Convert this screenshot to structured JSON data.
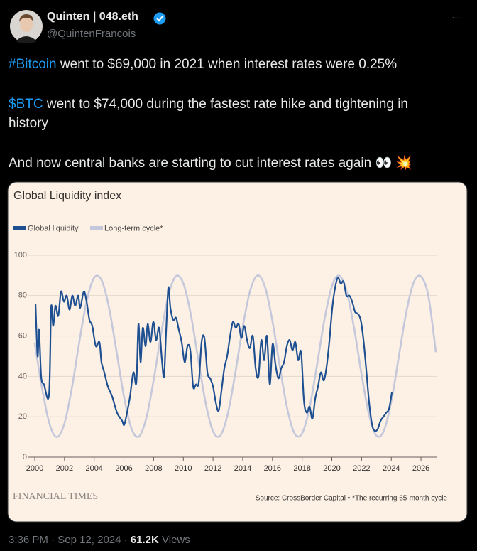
{
  "tweet": {
    "author_name": "Quinten | 048.eth",
    "handle": "@QuintenFrancois",
    "more": "···",
    "paragraphs": [
      {
        "tag": "#Bitcoin",
        "text": " went to $69,000 in 2021 when interest rates were 0.25%"
      },
      {
        "tag": "$BTC",
        "text": " went to $74,000 during the fastest rate hike and tightening in history"
      },
      {
        "text": "And now central banks are starting to cut interest rates again 👀 💥"
      }
    ],
    "time": "3:36 PM",
    "date": "Sep 12, 2024",
    "separator": "·",
    "views_count": "61.2K",
    "views_label": "Views"
  },
  "chart_data": {
    "type": "line",
    "title": "Global Liquidity index",
    "publisher": "FINANCIAL TIMES",
    "source": "Source: CrossBorder Capital • *The recurring 65-month cycle",
    "xlim": [
      2000,
      2027
    ],
    "xticks": [
      2000,
      2002,
      2004,
      2006,
      2008,
      2010,
      2012,
      2014,
      2016,
      2018,
      2020,
      2022,
      2024,
      2026
    ],
    "ylim": [
      0,
      100
    ],
    "yticks": [
      0,
      20,
      40,
      60,
      80,
      100
    ],
    "grid": true,
    "series": [
      {
        "name": "Long-term cycle*",
        "color": "#c4c8da",
        "x": [
          2000,
          2000.5,
          2001,
          2001.5,
          2002,
          2002.5,
          2003,
          2003.5,
          2004,
          2004.5,
          2005,
          2005.5,
          2006,
          2006.5,
          2007,
          2007.5,
          2008,
          2008.5,
          2009,
          2009.5,
          2010,
          2010.5,
          2011,
          2011.5,
          2012,
          2012.5,
          2013,
          2013.5,
          2014,
          2014.5,
          2015,
          2015.5,
          2016,
          2016.5,
          2017,
          2017.5,
          2018,
          2018.5,
          2019,
          2019.5,
          2020,
          2020.5,
          2021,
          2021.5,
          2022,
          2022.5,
          2023,
          2023.5,
          2024,
          2024.5,
          2025,
          2025.5,
          2026,
          2026.5,
          2027
        ],
        "values": [
          56.4,
          33.7,
          16.3,
          10.0,
          16.8,
          34.4,
          57.1,
          77.5,
          88.9,
          87.6,
          74.0,
          52.5,
          30.2,
          14.4,
          10.2,
          19.1,
          38.0,
          60.9,
          80.2,
          89.6,
          86.1,
          70.8,
          48.6,
          26.9,
          12.8,
          10.8,
          21.7,
          41.7,
          64.5,
          82.5,
          90.0,
          84.3,
          67.4,
          44.8,
          23.9,
          11.6,
          11.8,
          24.5,
          45.6,
          68.0,
          84.6,
          89.9,
          82.1,
          63.8,
          41.0,
          21.1,
          10.7,
          13.1,
          27.5,
          49.4,
          71.4,
          86.4,
          89.5,
          79.7,
          52
        ]
      },
      {
        "name": "Global liquidity",
        "color": "#1d4f91",
        "x": [
          2000.05,
          2000.19,
          2000.29,
          2000.43,
          2000.62,
          2000.96,
          2001.1,
          2001.24,
          2001.39,
          2001.58,
          2001.77,
          2001.96,
          2002.15,
          2002.34,
          2002.53,
          2002.72,
          2002.92,
          2003.06,
          2003.3,
          2003.49,
          2003.68,
          2003.87,
          2004.11,
          2004.35,
          2004.49,
          2004.68,
          2004.92,
          2005.21,
          2005.54,
          2005.88,
          2006.02,
          2006.21,
          2006.41,
          2006.64,
          2006.84,
          2006.98,
          2007.12,
          2007.27,
          2007.46,
          2007.6,
          2007.79,
          2007.98,
          2008.17,
          2008.37,
          2008.56,
          2008.7,
          2008.84,
          2008.99,
          2009.13,
          2009.32,
          2009.51,
          2009.7,
          2009.89,
          2010.09,
          2010.28,
          2010.47,
          2010.66,
          2010.85,
          2011.04,
          2011.23,
          2011.42,
          2011.62,
          2011.81,
          2012.0,
          2012.19,
          2012.38,
          2012.57,
          2012.76,
          2012.95,
          2013.15,
          2013.34,
          2013.53,
          2013.72,
          2013.91,
          2014.1,
          2014.29,
          2014.48,
          2014.68,
          2014.87,
          2015.06,
          2015.25,
          2015.44,
          2015.63,
          2015.82,
          2016.01,
          2016.2,
          2016.4,
          2016.59,
          2016.78,
          2016.97,
          2017.16,
          2017.35,
          2017.54,
          2017.73,
          2017.93,
          2018.12,
          2018.31,
          2018.5,
          2018.69,
          2018.88,
          2019.07,
          2019.26,
          2019.46,
          2019.65,
          2019.84,
          2020.03,
          2020.22,
          2020.41,
          2020.6,
          2020.79,
          2020.98,
          2021.18,
          2021.37,
          2021.56,
          2021.75,
          2021.94,
          2022.13,
          2022.32,
          2022.51,
          2022.71,
          2022.9,
          2023.09,
          2023.28,
          2023.47,
          2023.66,
          2023.85,
          2024.04
        ],
        "values": [
          76,
          50,
          63,
          40,
          36,
          31,
          74,
          65,
          75,
          70,
          82,
          77,
          80,
          73,
          80,
          75,
          80,
          74,
          82,
          77,
          68,
          65,
          55,
          57,
          47,
          42,
          35,
          30,
          22,
          18,
          16,
          22,
          30,
          42,
          37,
          66,
          47,
          64,
          55,
          66,
          57,
          67,
          58,
          64,
          48,
          40,
          62,
          84,
          74,
          68,
          69,
          63,
          57,
          47,
          55,
          53,
          35,
          36,
          37,
          57,
          59,
          42,
          39,
          35,
          27,
          23,
          33,
          44,
          50,
          60,
          67,
          64,
          66,
          59,
          65,
          58,
          54,
          60,
          44,
          40,
          58,
          48,
          60,
          36,
          56,
          46,
          39,
          44,
          47,
          55,
          58,
          53,
          57,
          48,
          52,
          28,
          22,
          25,
          19,
          29,
          35,
          42,
          38,
          45,
          58,
          74,
          84,
          89,
          86,
          87,
          80,
          80,
          77,
          72,
          71,
          68,
          58,
          43,
          27,
          16,
          13,
          14,
          18,
          20,
          22,
          24,
          32
        ]
      }
    ],
    "legend_order": [
      1,
      0
    ]
  }
}
